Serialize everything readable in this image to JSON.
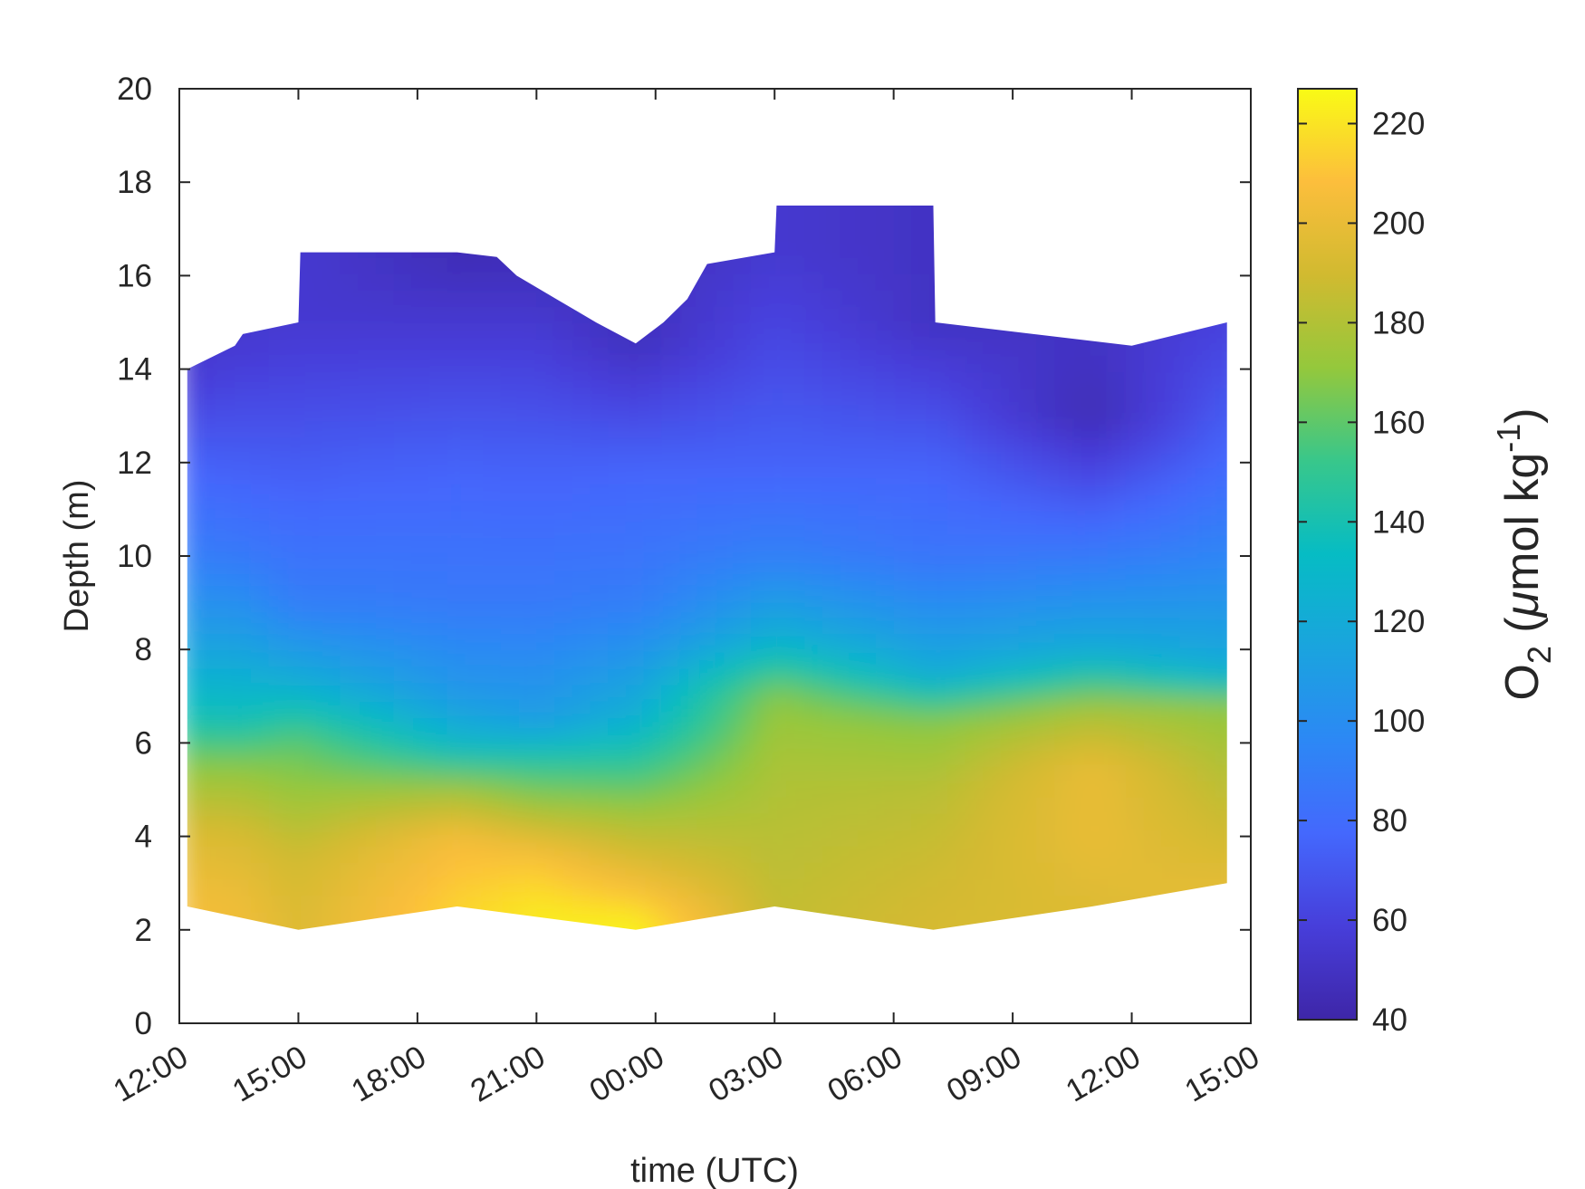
{
  "chart_data": {
    "type": "heatmap",
    "title": "",
    "xlabel": "time (UTC)",
    "ylabel": "Depth (m)",
    "x_tick_labels": [
      "12:00",
      "15:00",
      "18:00",
      "21:00",
      "00:00",
      "03:00",
      "06:00",
      "09:00",
      "12:00",
      "15:00"
    ],
    "x_tick_hours": [
      0,
      3,
      6,
      9,
      12,
      15,
      18,
      21,
      24,
      27
    ],
    "xlim_hours": [
      0,
      27
    ],
    "ylim": [
      0,
      20
    ],
    "y_ticks": [
      0,
      2,
      4,
      6,
      8,
      10,
      12,
      14,
      16,
      18,
      20
    ],
    "colorbar": {
      "label_main": "O",
      "label_sub": "2",
      "label_open": " (",
      "label_mu": "μ",
      "label_unit": "mol kg",
      "label_sup": "-1",
      "label_close": ")",
      "min": 40,
      "max": 227,
      "ticks": [
        40,
        60,
        80,
        100,
        120,
        140,
        160,
        180,
        200,
        220
      ],
      "colormap": "parula"
    },
    "profiles": [
      {
        "time_h": 0.2,
        "depths": [
          2.5,
          4,
          5.5,
          6.5,
          8,
          10,
          12,
          14
        ],
        "o2": [
          205,
          195,
          170,
          140,
          115,
          90,
          75,
          55
        ]
      },
      {
        "time_h": 1.5,
        "depths": [
          2.5,
          4,
          5.5,
          6.5,
          8,
          10,
          12,
          14.6
        ],
        "o2": [
          203,
          193,
          170,
          138,
          115,
          88,
          73,
          55
        ]
      },
      {
        "time_h": 3.0,
        "depths": [
          2,
          3.5,
          5,
          6,
          7.3,
          9,
          12,
          15
        ],
        "o2": [
          195,
          190,
          172,
          160,
          122,
          90,
          72,
          55
        ]
      },
      {
        "time_h": 7.0,
        "depths": [
          2.5,
          4,
          5,
          6,
          7,
          9,
          12,
          16.5
        ],
        "o2": [
          215,
          205,
          175,
          130,
          108,
          88,
          75,
          45
        ]
      },
      {
        "time_h": 9.0,
        "depths": [
          2.4,
          3.5,
          4.5,
          5.5,
          6.5,
          9,
          12,
          16.4
        ],
        "o2": [
          222,
          210,
          180,
          150,
          110,
          88,
          74,
          46
        ]
      },
      {
        "time_h": 11.5,
        "depths": [
          2.1,
          3.2,
          4.5,
          5.5,
          6.5,
          9,
          12,
          14.6
        ],
        "o2": [
          225,
          200,
          175,
          150,
          125,
          90,
          75,
          48
        ]
      },
      {
        "time_h": 15.0,
        "depths": [
          2.5,
          4,
          5.5,
          7,
          8.2,
          10,
          12,
          16.5
        ],
        "o2": [
          185,
          182,
          178,
          170,
          125,
          92,
          75,
          55
        ]
      },
      {
        "time_h": 19.0,
        "depths": [
          2,
          3.5,
          5,
          6.5,
          7.5,
          10,
          12,
          15
        ],
        "o2": [
          192,
          188,
          182,
          168,
          120,
          85,
          75,
          50
        ]
      },
      {
        "time_h": 23.0,
        "depths": [
          2.5,
          4,
          5.5,
          6.8,
          8,
          10,
          13,
          14.5
        ],
        "o2": [
          195,
          200,
          200,
          175,
          120,
          88,
          45,
          50
        ]
      },
      {
        "time_h": 26.4,
        "depths": [
          3,
          4,
          5.5,
          6.8,
          7.6,
          10,
          12,
          15
        ],
        "o2": [
          198,
          190,
          180,
          170,
          120,
          95,
          78,
          60
        ]
      }
    ],
    "data_top_boundary": [
      [
        0.2,
        14
      ],
      [
        1.4,
        14.5
      ],
      [
        1.6,
        14.75
      ],
      [
        3.0,
        15
      ],
      [
        3.05,
        16.5
      ],
      [
        7.0,
        16.5
      ],
      [
        8.0,
        16.4
      ],
      [
        8.5,
        16
      ],
      [
        9.5,
        15.5
      ],
      [
        10.5,
        15
      ],
      [
        11.5,
        14.55
      ],
      [
        12.2,
        15
      ],
      [
        12.8,
        15.5
      ],
      [
        13.2,
        16.1
      ],
      [
        13.3,
        16.25
      ],
      [
        15.0,
        16.5
      ],
      [
        15.05,
        17.5
      ],
      [
        19.0,
        17.5
      ],
      [
        19.05,
        15
      ],
      [
        24.0,
        14.5
      ],
      [
        26.4,
        15
      ]
    ],
    "data_bottom_boundary": [
      [
        0.2,
        2.5
      ],
      [
        3.0,
        2
      ],
      [
        7.0,
        2.5
      ],
      [
        11.5,
        2
      ],
      [
        15.0,
        2.5
      ],
      [
        19.0,
        2
      ],
      [
        23.0,
        2.5
      ],
      [
        26.4,
        3
      ]
    ]
  }
}
